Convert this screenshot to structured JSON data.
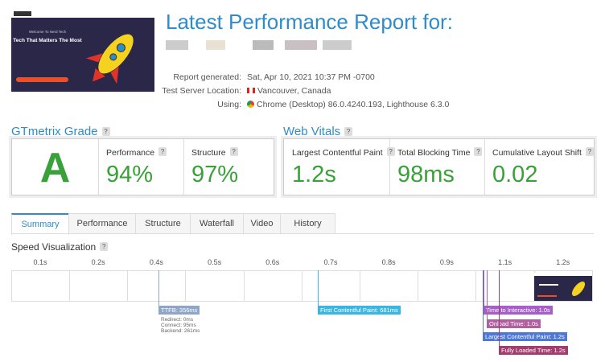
{
  "header": {
    "title": "Latest Performance Report for:"
  },
  "thumbnail": {
    "welcome": "Welcome To Nerd Tech",
    "headline": "Tech That Matters The Most"
  },
  "report": {
    "rows": [
      [
        "Report generated:",
        "Sat, Apr 10, 2021 10:37 PM -0700"
      ],
      [
        "Test Server Location:",
        "Vancouver, Canada"
      ],
      [
        "Using:",
        "Chrome (Desktop) 86.0.4240.193, Lighthouse 6.3.0"
      ]
    ]
  },
  "help": "?",
  "grade": {
    "title": "GTmetrix Grade",
    "letter": "A",
    "metrics": [
      {
        "label": "Performance",
        "value": "94%"
      },
      {
        "label": "Structure",
        "value": "97%"
      }
    ]
  },
  "vitals": {
    "title": "Web Vitals",
    "metrics": [
      {
        "label": "Largest Contentful Paint",
        "value": "1.2s"
      },
      {
        "label": "Total Blocking Time",
        "value": "98ms"
      },
      {
        "label": "Cumulative Layout Shift",
        "value": "0.02"
      }
    ]
  },
  "tabs": [
    "Summary",
    "Performance",
    "Structure",
    "Waterfall",
    "Video",
    "History"
  ],
  "timeline": {
    "title": "Speed Visualization",
    "ticks": [
      "0.1s",
      "0.2s",
      "0.4s",
      "0.5s",
      "0.6s",
      "0.7s",
      "0.8s",
      "0.9s",
      "1.1s",
      "1.2s"
    ],
    "ttfb": {
      "label": "TTFB: 356ms",
      "details": [
        "Redirect: 0ms",
        "Connect: 95ms",
        "Backend: 261ms"
      ]
    },
    "markers": [
      "First Contentful Paint: 681ms",
      "Time to Interactive: 1.0s",
      "Onload Time: 1.0s",
      "Largest Contentful Paint: 1.2s",
      "Fully Loaded Time: 1.2s"
    ]
  }
}
